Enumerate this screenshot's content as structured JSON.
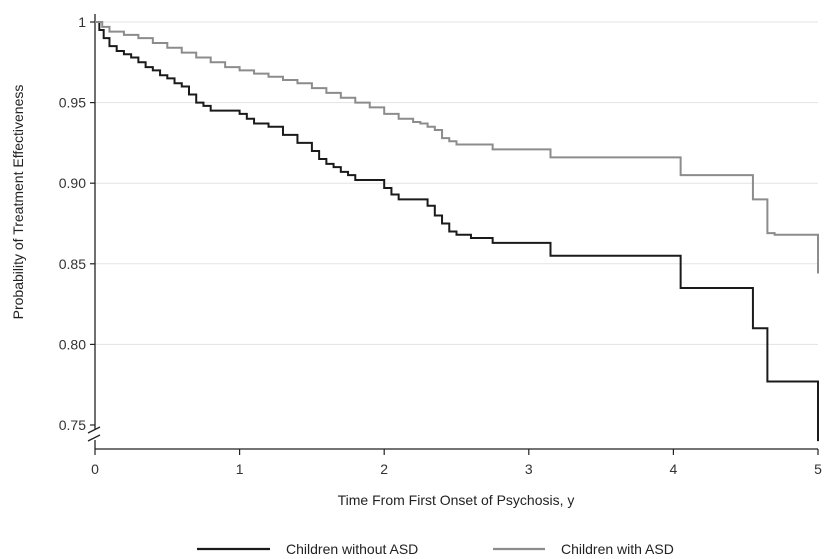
{
  "chart_data": {
    "type": "line",
    "title": "",
    "xlabel": "Time From First Onset of Psychosis, y",
    "ylabel": "Probability of Treatment Effectiveness",
    "xlim": [
      0,
      5
    ],
    "ylim": [
      0.75,
      1.0
    ],
    "y_axis_break": true,
    "x_ticks": [
      0,
      1,
      2,
      3,
      4,
      5
    ],
    "x_tick_labels": [
      "0",
      "1",
      "2",
      "3",
      "4",
      "5"
    ],
    "y_ticks": [
      0.75,
      0.8,
      0.85,
      0.9,
      0.95,
      1.0
    ],
    "y_tick_labels": [
      "0.75",
      "0.80",
      "0.85",
      "0.90",
      "0.95",
      "1"
    ],
    "grid": "horizontal",
    "legend_position": "bottom",
    "step": true,
    "series": [
      {
        "name": "Children without ASD",
        "color": "#1a1a1a",
        "x": [
          0,
          0.03,
          0.06,
          0.1,
          0.15,
          0.2,
          0.25,
          0.3,
          0.35,
          0.4,
          0.45,
          0.5,
          0.55,
          0.6,
          0.65,
          0.7,
          0.75,
          0.8,
          1.0,
          1.05,
          1.1,
          1.2,
          1.3,
          1.4,
          1.5,
          1.55,
          1.6,
          1.65,
          1.7,
          1.75,
          1.8,
          2.0,
          2.05,
          2.1,
          2.3,
          2.35,
          2.4,
          2.45,
          2.5,
          2.6,
          2.75,
          3.15,
          4.05,
          4.55,
          4.65,
          5.0
        ],
        "y": [
          1.0,
          0.995,
          0.99,
          0.985,
          0.982,
          0.98,
          0.978,
          0.975,
          0.972,
          0.97,
          0.967,
          0.965,
          0.962,
          0.96,
          0.955,
          0.95,
          0.948,
          0.945,
          0.943,
          0.94,
          0.937,
          0.935,
          0.93,
          0.925,
          0.92,
          0.915,
          0.912,
          0.91,
          0.907,
          0.905,
          0.902,
          0.897,
          0.893,
          0.89,
          0.886,
          0.88,
          0.875,
          0.87,
          0.868,
          0.866,
          0.863,
          0.855,
          0.835,
          0.81,
          0.777,
          0.74
        ]
      },
      {
        "name": "Children with ASD",
        "color": "#8c8c8c",
        "x": [
          0,
          0.05,
          0.1,
          0.2,
          0.3,
          0.4,
          0.5,
          0.6,
          0.7,
          0.8,
          0.9,
          1.0,
          1.1,
          1.2,
          1.3,
          1.4,
          1.5,
          1.6,
          1.7,
          1.8,
          1.9,
          2.0,
          2.1,
          2.2,
          2.25,
          2.3,
          2.35,
          2.4,
          2.45,
          2.5,
          2.75,
          3.15,
          4.05,
          4.55,
          4.65,
          4.7,
          5.0
        ],
        "y": [
          1.0,
          0.997,
          0.994,
          0.992,
          0.99,
          0.987,
          0.984,
          0.981,
          0.978,
          0.975,
          0.972,
          0.97,
          0.968,
          0.966,
          0.964,
          0.962,
          0.959,
          0.956,
          0.953,
          0.95,
          0.947,
          0.943,
          0.94,
          0.938,
          0.937,
          0.935,
          0.933,
          0.928,
          0.926,
          0.924,
          0.921,
          0.916,
          0.905,
          0.89,
          0.869,
          0.868,
          0.844
        ]
      }
    ]
  }
}
